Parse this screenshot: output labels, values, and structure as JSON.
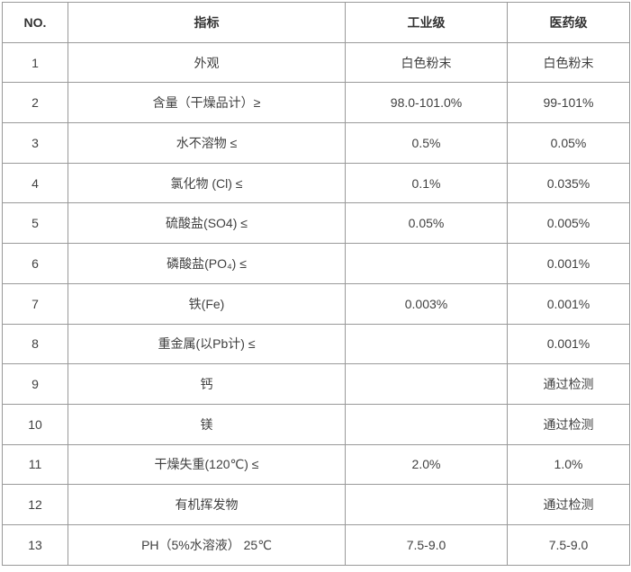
{
  "table": {
    "name": "product-specification-table",
    "border_color": "#999999",
    "header_text_color": "#333333",
    "cell_text_color": "#404040",
    "headers": {
      "no": "NO.",
      "indicator": "指标",
      "industrial": "工业级",
      "pharma": "医药级"
    },
    "rows": [
      {
        "no": "1",
        "indicator": "外观",
        "industrial": "白色粉末",
        "pharma": "白色粉末"
      },
      {
        "no": "2",
        "indicator": "含量（干燥品计）≥",
        "industrial": "98.0-101.0%",
        "pharma": "99-101%"
      },
      {
        "no": "3",
        "indicator": "水不溶物 ≤",
        "industrial": "0.5%",
        "pharma": "0.05%"
      },
      {
        "no": "4",
        "indicator": "氯化物 (Cl) ≤",
        "industrial": "0.1%",
        "pharma": "0.035%"
      },
      {
        "no": "5",
        "indicator": "硫酸盐(SO4) ≤",
        "industrial": "0.05%",
        "pharma": "0.005%"
      },
      {
        "no": "6",
        "indicator": "磷酸盐(PO₄) ≤",
        "industrial": "",
        "pharma": "0.001%"
      },
      {
        "no": "7",
        "indicator": "铁(Fe)",
        "industrial": "0.003%",
        "pharma": "0.001%"
      },
      {
        "no": "8",
        "indicator": "重金属(以Pb计) ≤",
        "industrial": "",
        "pharma": "0.001%"
      },
      {
        "no": "9",
        "indicator": "钙",
        "industrial": "",
        "pharma": "通过检测"
      },
      {
        "no": "10",
        "indicator": "镁",
        "industrial": "",
        "pharma": "通过检测"
      },
      {
        "no": "11",
        "indicator": "干燥失重(120℃) ≤",
        "industrial": "2.0%",
        "pharma": "1.0%"
      },
      {
        "no": "12",
        "indicator": "有机挥发物",
        "industrial": "",
        "pharma": "通过检测"
      },
      {
        "no": "13",
        "indicator": "PH（5%水溶液） 25℃",
        "industrial": "7.5-9.0",
        "pharma": "7.5-9.0"
      }
    ]
  }
}
